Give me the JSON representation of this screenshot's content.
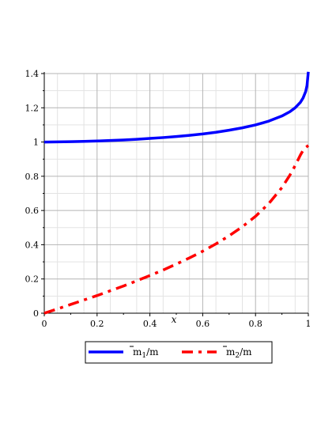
{
  "chart_data": {
    "type": "line",
    "title": "",
    "xlabel": "x",
    "ylabel": "",
    "xlim": [
      0,
      1
    ],
    "ylim": [
      0,
      1.4
    ],
    "x_ticks": [
      0,
      0.2,
      0.4,
      0.6,
      0.8,
      1
    ],
    "x_tick_labels": [
      "0",
      "0.2",
      "0.4",
      "0.6",
      "0.8",
      "1"
    ],
    "y_ticks": [
      0,
      0.2,
      0.4,
      0.6,
      0.8,
      1,
      1.2,
      1.4
    ],
    "y_tick_labels": [
      "0",
      "0.2",
      "0.4",
      "0.6",
      "0.8",
      "1",
      "1.2",
      "1.4"
    ],
    "grid": true,
    "legend_position": "bottom",
    "series": [
      {
        "name": "m̄1/m",
        "legend_base": "m",
        "legend_sub": "1",
        "legend_rest": "/m",
        "color": "#0000ff",
        "style": "solid",
        "x": [
          0,
          0.05,
          0.1,
          0.15,
          0.2,
          0.25,
          0.3,
          0.35,
          0.4,
          0.45,
          0.5,
          0.55,
          0.6,
          0.65,
          0.7,
          0.75,
          0.8,
          0.85,
          0.9,
          0.93,
          0.95,
          0.97,
          0.98,
          0.99,
          0.995,
          1
        ],
        "y": [
          1.0,
          1.001,
          1.002,
          1.004,
          1.006,
          1.009,
          1.012,
          1.016,
          1.021,
          1.026,
          1.032,
          1.039,
          1.047,
          1.057,
          1.069,
          1.083,
          1.1,
          1.122,
          1.152,
          1.177,
          1.2,
          1.232,
          1.257,
          1.295,
          1.33,
          1.41
        ]
      },
      {
        "name": "m̄2/m",
        "legend_base": "m",
        "legend_sub": "2",
        "legend_rest": "/m",
        "color": "#ff0000",
        "style": "dashdot",
        "x": [
          0,
          0.05,
          0.1,
          0.15,
          0.2,
          0.25,
          0.3,
          0.35,
          0.4,
          0.45,
          0.5,
          0.55,
          0.6,
          0.65,
          0.7,
          0.75,
          0.8,
          0.85,
          0.9,
          0.93,
          0.95,
          0.97,
          0.98,
          0.99,
          0.995,
          1
        ],
        "y": [
          0.0,
          0.025,
          0.051,
          0.077,
          0.103,
          0.131,
          0.159,
          0.189,
          0.22,
          0.252,
          0.287,
          0.323,
          0.362,
          0.405,
          0.452,
          0.505,
          0.566,
          0.64,
          0.734,
          0.806,
          0.862,
          0.924,
          0.951,
          0.968,
          0.974,
          0.98
        ]
      }
    ]
  }
}
